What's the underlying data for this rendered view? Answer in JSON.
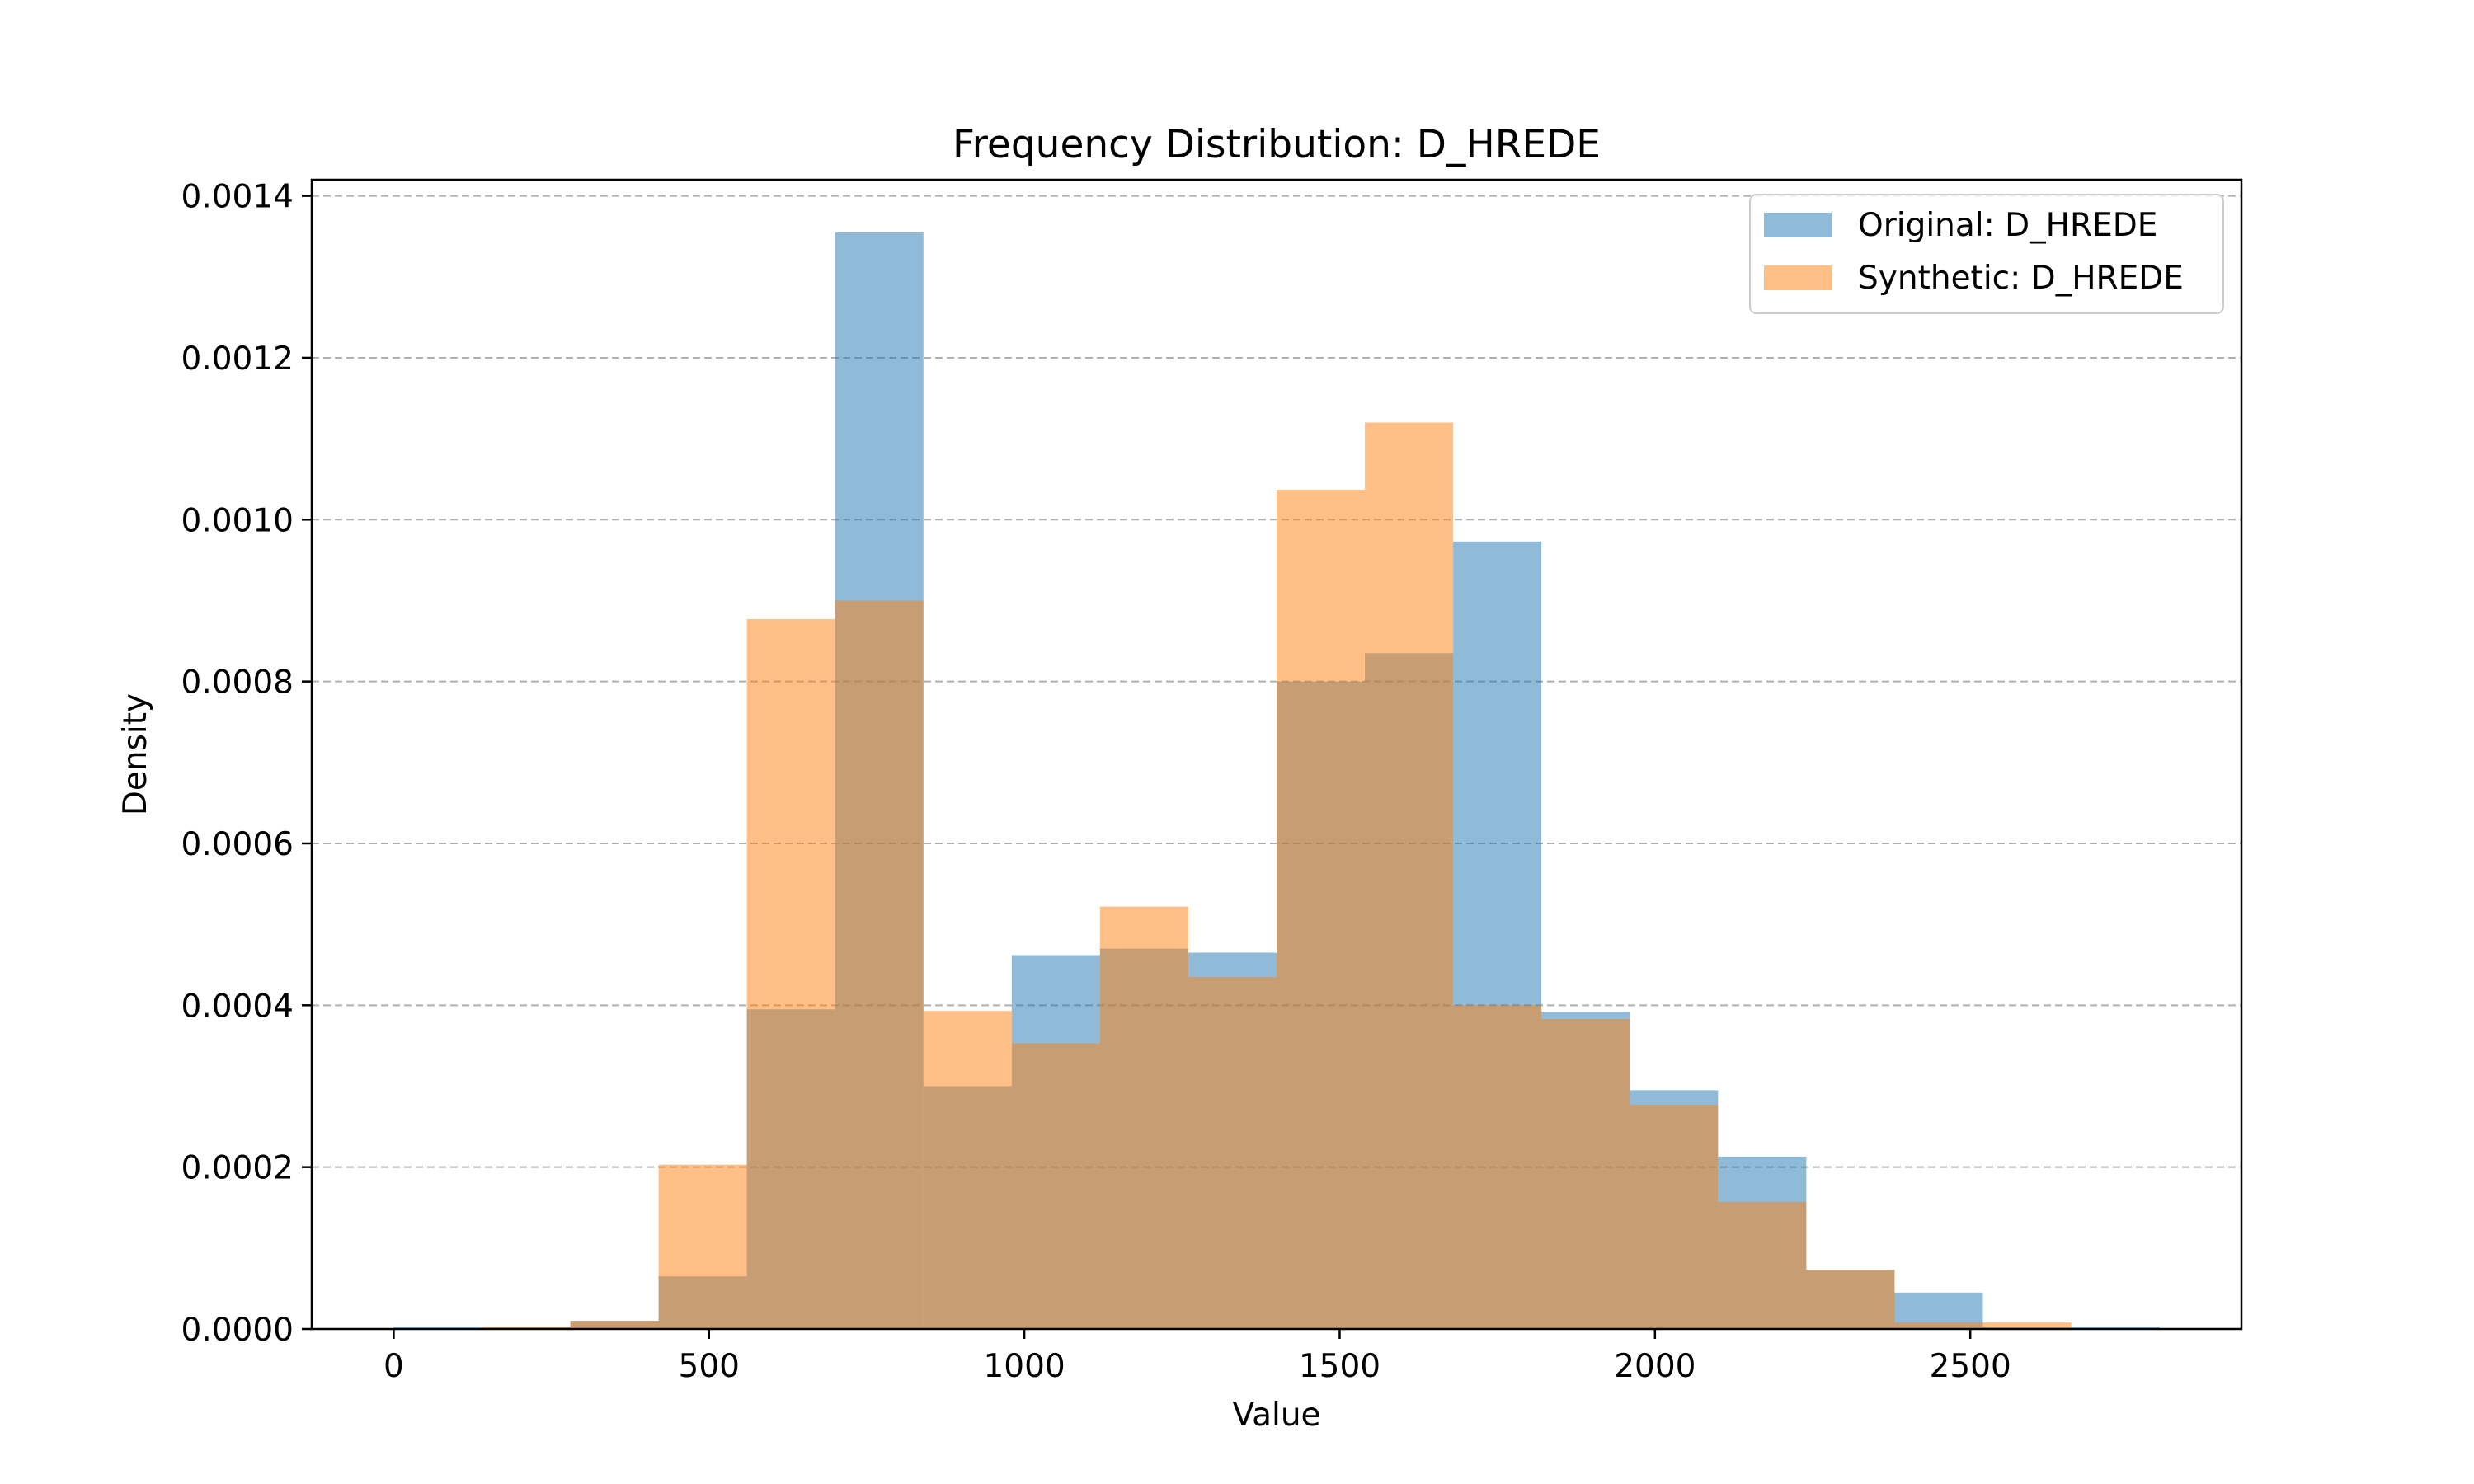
{
  "chart_data": {
    "type": "bar",
    "title": "Frequency Distribution: D_HREDE",
    "xlabel": "Value",
    "ylabel": "Density",
    "xlim": [
      -130,
      2930
    ],
    "ylim": [
      0,
      0.00142
    ],
    "xticks": [
      0,
      500,
      1000,
      1500,
      2000,
      2500
    ],
    "xtick_labels": [
      "0",
      "500",
      "1000",
      "1500",
      "2000",
      "2500"
    ],
    "yticks": [
      0,
      0.0002,
      0.0004,
      0.0006,
      0.0008,
      0.001,
      0.0012,
      0.0014
    ],
    "ytick_labels": [
      "0.0000",
      "0.0002",
      "0.0004",
      "0.0006",
      "0.0008",
      "0.0010",
      "0.0012",
      "0.0014"
    ],
    "grid": "y-dashed",
    "legend_position": "top-right",
    "bin_edges": [
      0,
      140,
      280,
      420,
      560,
      700,
      840,
      980,
      1120,
      1260,
      1400,
      1540,
      1680,
      1820,
      1960,
      2100,
      2240,
      2380,
      2520,
      2660,
      2800
    ],
    "series": [
      {
        "name": "Original: D_HREDE",
        "color": "#1f77b4",
        "alpha": 0.5,
        "bin_edges": [
          0,
          140,
          280,
          420,
          560,
          700,
          840,
          980,
          1120,
          1260,
          1400,
          1540,
          1680,
          1820,
          1960,
          2100,
          2240,
          2380,
          2520,
          2660,
          2800
        ],
        "values": [
          3e-06,
          3e-06,
          1e-05,
          6.5e-05,
          0.000395,
          0.001355,
          0.0003,
          0.000462,
          0.00047,
          0.000465,
          0.0008,
          0.000835,
          0.000973,
          0.000392,
          0.000295,
          0.000213,
          7.3e-05,
          4.5e-05,
          3e-06,
          3e-06
        ]
      },
      {
        "name": "Synthetic: D_HREDE",
        "color": "#ff7f0e",
        "alpha": 0.5,
        "bin_edges": [
          140,
          280,
          420,
          560,
          700,
          840,
          980,
          1120,
          1260,
          1400,
          1540,
          1680,
          1820,
          1960,
          2100,
          2240,
          2380,
          2520,
          2660
        ],
        "values": [
          3e-06,
          1e-05,
          0.000203,
          0.000877,
          0.0009,
          0.000393,
          0.000353,
          0.000522,
          0.000435,
          0.001037,
          0.00112,
          0.0004,
          0.000383,
          0.000277,
          0.000157,
          7.3e-05,
          8e-06,
          8e-06
        ]
      }
    ]
  }
}
